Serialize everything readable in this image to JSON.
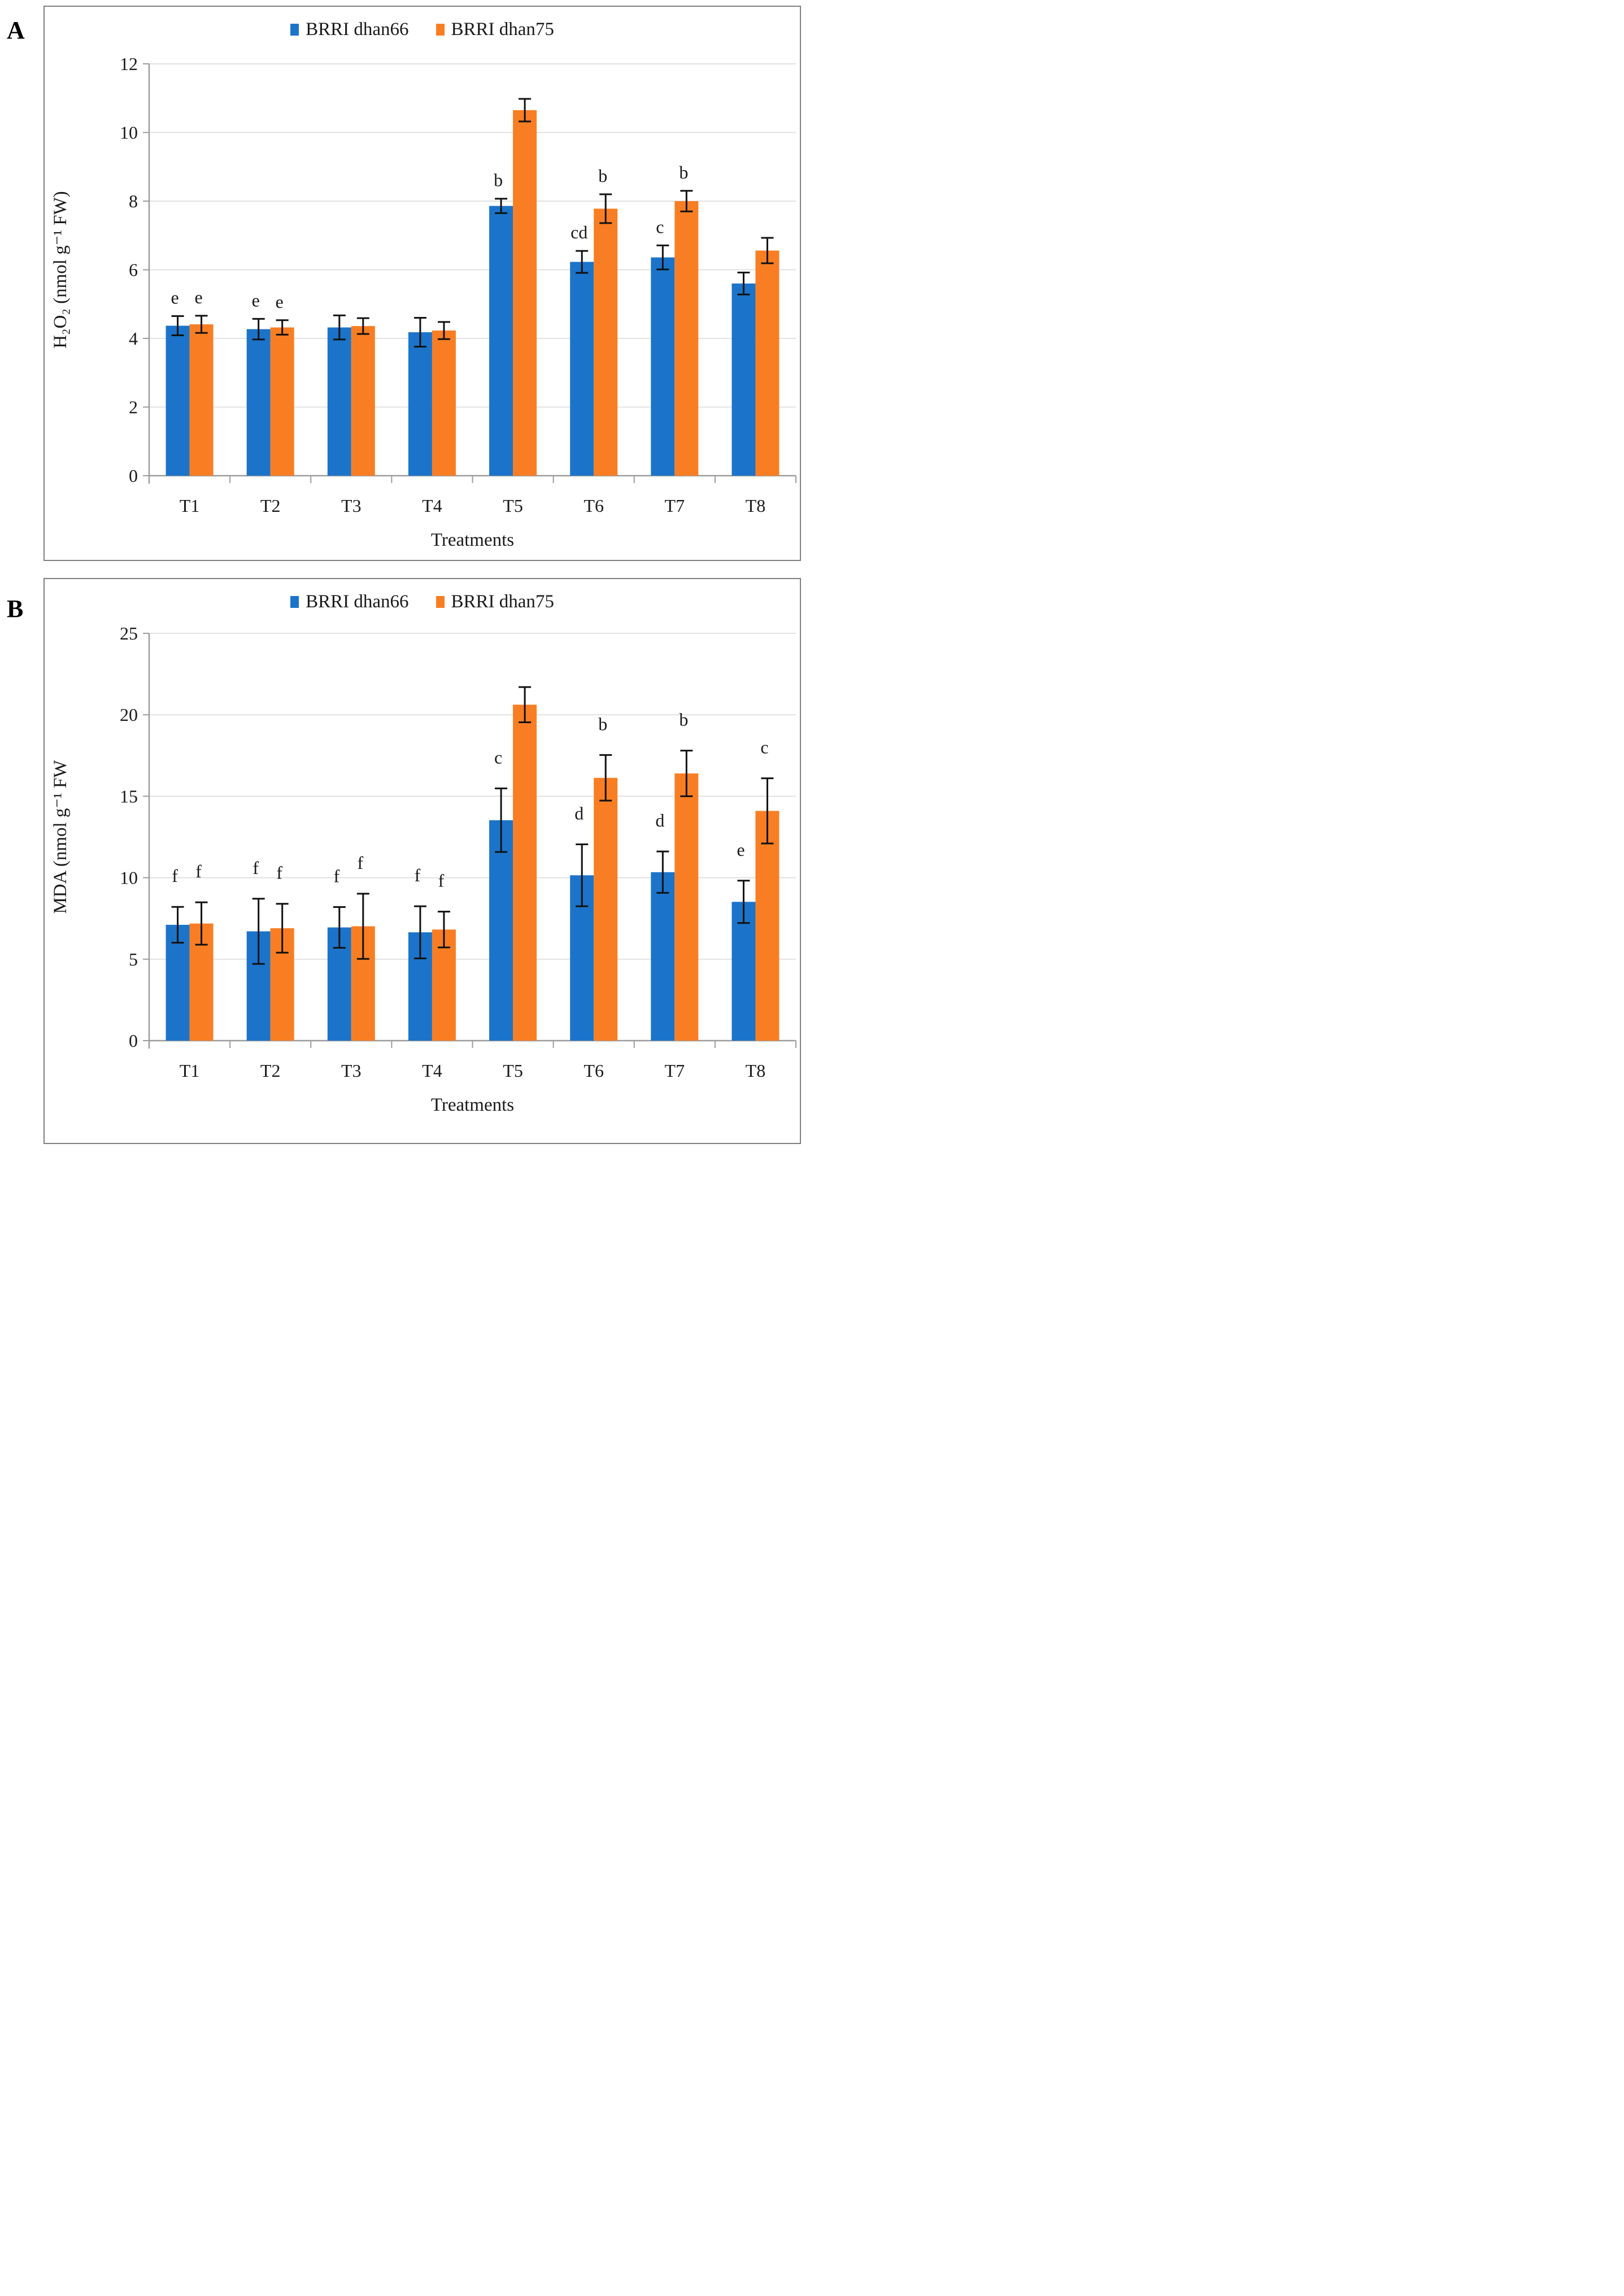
{
  "panels": [
    {
      "letter": "A"
    },
    {
      "letter": "B"
    }
  ],
  "chart_data": [
    {
      "type": "bar",
      "title": "",
      "xlabel": "Treatments",
      "ylabel": "H₂O₂ (nmol g⁻¹ FW)",
      "ylim": [
        0,
        12
      ],
      "yticks": [
        0,
        2,
        4,
        6,
        8,
        10,
        12
      ],
      "grid": true,
      "legend_position": "top-center",
      "categories": [
        "T1",
        "T2",
        "T3",
        "T4",
        "T5",
        "T6",
        "T7",
        "T8"
      ],
      "series": [
        {
          "name": "BRRI dhan66",
          "color": "#1B74C9",
          "values": [
            4.37,
            4.27,
            4.32,
            4.18,
            7.86,
            6.23,
            6.36,
            5.6
          ],
          "errors": [
            0.28,
            0.3,
            0.35,
            0.42,
            0.21,
            0.32,
            0.35,
            0.32
          ],
          "letters": [
            "e",
            "e",
            "",
            "",
            "b",
            "cd",
            "c",
            ""
          ]
        },
        {
          "name": "BRRI dhan75",
          "color": "#F97E23",
          "values": [
            4.41,
            4.32,
            4.36,
            4.23,
            10.65,
            7.78,
            8.0,
            6.56
          ],
          "errors": [
            0.25,
            0.21,
            0.23,
            0.25,
            0.33,
            0.42,
            0.3,
            0.37
          ],
          "letters": [
            "e",
            "e",
            "",
            "",
            "",
            "b",
            "b",
            ""
          ]
        }
      ]
    },
    {
      "type": "bar",
      "title": "",
      "xlabel": "Treatments",
      "ylabel": "MDA (nmol g⁻¹ FW",
      "ylim": [
        0,
        25
      ],
      "yticks": [
        0,
        5,
        10,
        15,
        20,
        25
      ],
      "grid": true,
      "legend_position": "top-center",
      "categories": [
        "T1",
        "T2",
        "T3",
        "T4",
        "T5",
        "T6",
        "T7",
        "T8"
      ],
      "series": [
        {
          "name": "BRRI dhan66",
          "color": "#1B74C9",
          "values": [
            7.11,
            6.71,
            6.95,
            6.65,
            13.53,
            10.15,
            10.34,
            8.52
          ],
          "errors": [
            1.1,
            2.0,
            1.25,
            1.6,
            1.95,
            1.9,
            1.27,
            1.3
          ],
          "letters": [
            "f",
            "f",
            "f",
            "f",
            "c",
            "d",
            "d",
            "e"
          ]
        },
        {
          "name": "BRRI dhan75",
          "color": "#F97E23",
          "values": [
            7.19,
            6.9,
            7.02,
            6.82,
            20.62,
            16.13,
            16.4,
            14.1
          ],
          "errors": [
            1.3,
            1.5,
            2.0,
            1.1,
            1.08,
            1.4,
            1.4,
            2.0
          ],
          "letters": [
            "f",
            "f",
            "f",
            "f",
            "",
            "b",
            "b",
            "c"
          ]
        }
      ]
    }
  ],
  "style": {
    "grid_color": "#D9D9D9",
    "axis_color": "#9C9C9C",
    "border_color": "#7F7F7F",
    "error_bar_color": "#111111",
    "text_color": "#1A1A1A"
  }
}
